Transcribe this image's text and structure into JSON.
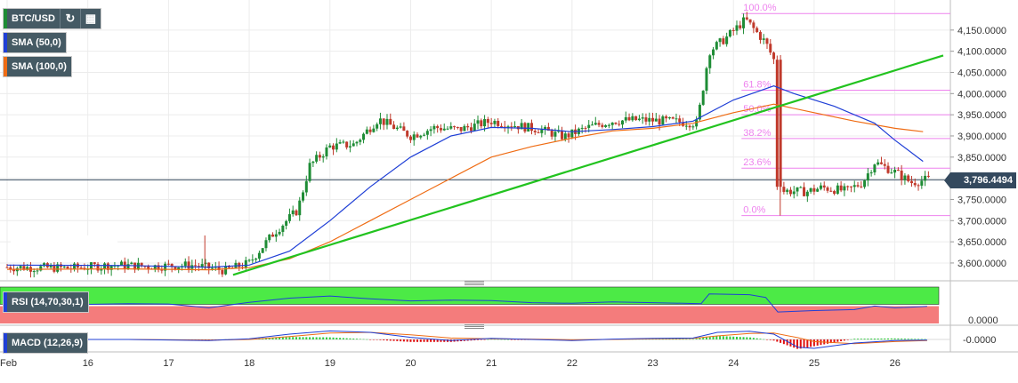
{
  "window": {
    "pair_label": "BTC/USD"
  },
  "toolbar": {
    "refresh_icon": "refresh-icon",
    "calendar_icon": "calendar-icon"
  },
  "legend": {
    "sma50_label": "SMA (50,0)",
    "sma100_label": "SMA (100,0)",
    "rsi_label": "RSI (14,70,30,1)",
    "macd_label": "MACD (12,26,9)"
  },
  "price_tag": "3,796.4494",
  "colors": {
    "bull": "#1e8c35",
    "bear": "#c0392b",
    "sma50": "#1f3fd6",
    "sma100": "#ef6c14",
    "trend": "#22c31f",
    "fib": "#ee82ee",
    "rsi_over": "#4cea46",
    "rsi_under": "#f47c7c",
    "rsi_line": "#1f3fd6",
    "macd": "#1f3fd6",
    "signal": "#ef6c14",
    "hist_pos": "#2ecc40",
    "hist_neg": "#e01010",
    "pair_swatch": "#1e8c35"
  },
  "chart_data": {
    "type": "candlestick",
    "x_ticks": [
      {
        "label": "Feb",
        "t": 15.0
      },
      {
        "label": "16",
        "t": 16
      },
      {
        "label": "17",
        "t": 17
      },
      {
        "label": "18",
        "t": 18
      },
      {
        "label": "19",
        "t": 19
      },
      {
        "label": "20",
        "t": 20
      },
      {
        "label": "21",
        "t": 21
      },
      {
        "label": "22",
        "t": 22
      },
      {
        "label": "23",
        "t": 23
      },
      {
        "label": "24",
        "t": 24
      },
      {
        "label": "25",
        "t": 25
      },
      {
        "label": "26",
        "t": 26
      }
    ],
    "price_axis": {
      "ylim": [
        3560,
        4200
      ],
      "ticks": [
        "3,600.0000",
        "3,650.0000",
        "3,700.0000",
        "3,750.0000",
        "3,800.0000",
        "3,850.0000",
        "3,900.0000",
        "3,950.0000",
        "4,000.0000",
        "4,050.0000",
        "4,100.0000",
        "4,150.0000"
      ],
      "tick_values": [
        3600,
        3650,
        3700,
        3750,
        3800,
        3850,
        3900,
        3950,
        4000,
        4050,
        4100,
        4150
      ]
    },
    "current_price": 3796.4494,
    "fibonacci": [
      {
        "label": "100.0%",
        "value": 4189
      },
      {
        "label": "61.8%",
        "value": 4008
      },
      {
        "label": "50.0%",
        "value": 3950
      },
      {
        "label": "38.2%",
        "value": 3894
      },
      {
        "label": "23.6%",
        "value": 3824
      },
      {
        "label": "0.0%",
        "value": 3712
      }
    ],
    "trendline": [
      {
        "t": 17.8,
        "v": 3572
      },
      {
        "t": 26.6,
        "v": 4090
      }
    ],
    "anchors": [
      [
        15.0,
        3590
      ],
      [
        15.8,
        3588
      ],
      [
        16.3,
        3595
      ],
      [
        16.8,
        3592
      ],
      [
        17.3,
        3595
      ],
      [
        17.7,
        3582
      ],
      [
        18.0,
        3600
      ],
      [
        18.3,
        3670
      ],
      [
        18.6,
        3725
      ],
      [
        18.75,
        3830
      ],
      [
        19.0,
        3875
      ],
      [
        19.3,
        3880
      ],
      [
        19.6,
        3940
      ],
      [
        20.0,
        3900
      ],
      [
        20.3,
        3920
      ],
      [
        20.6,
        3915
      ],
      [
        21.0,
        3935
      ],
      [
        21.3,
        3925
      ],
      [
        21.6,
        3915
      ],
      [
        21.9,
        3898
      ],
      [
        22.2,
        3920
      ],
      [
        22.5,
        3935
      ],
      [
        22.8,
        3938
      ],
      [
        23.2,
        3935
      ],
      [
        23.55,
        3930
      ],
      [
        23.7,
        4100
      ],
      [
        23.9,
        4130
      ],
      [
        24.15,
        4175
      ],
      [
        24.4,
        4120
      ],
      [
        24.5,
        4080
      ],
      [
        24.55,
        3770
      ],
      [
        24.7,
        3770
      ],
      [
        24.9,
        3768
      ],
      [
        25.1,
        3778
      ],
      [
        25.4,
        3770
      ],
      [
        25.6,
        3790
      ],
      [
        25.75,
        3838
      ],
      [
        26.0,
        3815
      ],
      [
        26.2,
        3790
      ],
      [
        26.4,
        3797
      ]
    ],
    "sma50": [
      [
        15.0,
        3595
      ],
      [
        16.5,
        3594
      ],
      [
        17.5,
        3590
      ],
      [
        18.0,
        3595
      ],
      [
        18.5,
        3628
      ],
      [
        19.0,
        3700
      ],
      [
        19.5,
        3780
      ],
      [
        20.0,
        3850
      ],
      [
        20.5,
        3900
      ],
      [
        21.0,
        3920
      ],
      [
        21.5,
        3918
      ],
      [
        22.0,
        3910
      ],
      [
        22.5,
        3915
      ],
      [
        23.0,
        3922
      ],
      [
        23.5,
        3935
      ],
      [
        24.0,
        3985
      ],
      [
        24.5,
        4018
      ],
      [
        24.75,
        4000
      ],
      [
        25.25,
        3970
      ],
      [
        25.75,
        3930
      ],
      [
        26.0,
        3890
      ],
      [
        26.35,
        3840
      ]
    ],
    "sma100": [
      [
        15.0,
        3585
      ],
      [
        16.5,
        3586
      ],
      [
        17.5,
        3584
      ],
      [
        18.0,
        3589
      ],
      [
        18.5,
        3610
      ],
      [
        19.0,
        3650
      ],
      [
        19.5,
        3700
      ],
      [
        20.0,
        3750
      ],
      [
        20.5,
        3800
      ],
      [
        21.0,
        3850
      ],
      [
        21.5,
        3875
      ],
      [
        22.0,
        3895
      ],
      [
        22.5,
        3912
      ],
      [
        23.0,
        3918
      ],
      [
        23.5,
        3930
      ],
      [
        24.0,
        3955
      ],
      [
        24.5,
        3975
      ],
      [
        25.0,
        3955
      ],
      [
        25.5,
        3935
      ],
      [
        26.0,
        3918
      ],
      [
        26.35,
        3910
      ]
    ],
    "rsi": {
      "axis_label": "0.0000",
      "points": [
        [
          15.0,
          52
        ],
        [
          15.5,
          48
        ],
        [
          16.0,
          50
        ],
        [
          16.5,
          52
        ],
        [
          17.0,
          51
        ],
        [
          17.5,
          40
        ],
        [
          18.0,
          56
        ],
        [
          18.5,
          68
        ],
        [
          19.0,
          74
        ],
        [
          19.5,
          66
        ],
        [
          20.0,
          60
        ],
        [
          20.5,
          62
        ],
        [
          21.0,
          61
        ],
        [
          21.5,
          55
        ],
        [
          22.0,
          53
        ],
        [
          22.5,
          57
        ],
        [
          23.0,
          55
        ],
        [
          23.6,
          52
        ],
        [
          23.7,
          80
        ],
        [
          24.2,
          78
        ],
        [
          24.4,
          70
        ],
        [
          24.55,
          28
        ],
        [
          25.0,
          32
        ],
        [
          25.5,
          35
        ],
        [
          25.75,
          45
        ],
        [
          26.0,
          40
        ],
        [
          26.4,
          44
        ]
      ]
    },
    "macd": {
      "axis_label": "-0.0000",
      "macd": [
        [
          15.0,
          0.0
        ],
        [
          16.5,
          0.0
        ],
        [
          17.5,
          -0.3
        ],
        [
          18.0,
          0.2
        ],
        [
          18.5,
          1.5
        ],
        [
          19.0,
          2.4
        ],
        [
          19.5,
          2.0
        ],
        [
          20.0,
          0.6
        ],
        [
          20.5,
          -0.3
        ],
        [
          21.0,
          0.3
        ],
        [
          21.5,
          0.0
        ],
        [
          22.0,
          -0.3
        ],
        [
          22.5,
          0.1
        ],
        [
          23.0,
          0.3
        ],
        [
          23.5,
          0.4
        ],
        [
          23.8,
          2.0
        ],
        [
          24.2,
          2.3
        ],
        [
          24.5,
          1.5
        ],
        [
          24.8,
          -2.2
        ],
        [
          25.0,
          -2.5
        ],
        [
          25.5,
          -1.0
        ],
        [
          26.0,
          -0.3
        ],
        [
          26.4,
          -0.2
        ]
      ],
      "signal": [
        [
          15.0,
          0.0
        ],
        [
          16.5,
          0.0
        ],
        [
          17.5,
          -0.2
        ],
        [
          18.0,
          0.0
        ],
        [
          18.5,
          0.8
        ],
        [
          19.0,
          1.8
        ],
        [
          19.5,
          2.0
        ],
        [
          20.0,
          1.3
        ],
        [
          20.5,
          0.4
        ],
        [
          21.0,
          0.2
        ],
        [
          21.5,
          0.1
        ],
        [
          22.0,
          -0.1
        ],
        [
          22.5,
          0.0
        ],
        [
          23.0,
          0.2
        ],
        [
          23.5,
          0.3
        ],
        [
          23.8,
          1.0
        ],
        [
          24.2,
          1.7
        ],
        [
          24.5,
          1.8
        ],
        [
          24.8,
          0.5
        ],
        [
          25.0,
          -0.6
        ],
        [
          25.5,
          -1.2
        ],
        [
          26.0,
          -0.6
        ],
        [
          26.4,
          -0.3
        ]
      ]
    }
  }
}
